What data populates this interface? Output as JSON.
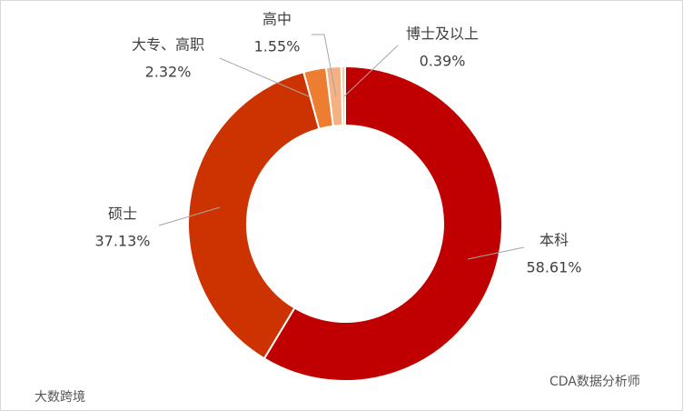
{
  "chart_data": {
    "type": "donut",
    "categories": [
      "本科",
      "硕士",
      "大专、高职",
      "高中",
      "博士及以上"
    ],
    "values": [
      58.61,
      37.13,
      2.32,
      1.55,
      0.39
    ],
    "value_labels": [
      "58.61%",
      "37.13%",
      "2.32%",
      "1.55%",
      "0.39%"
    ],
    "colors": [
      "#C00000",
      "#CC3300",
      "#ED7D31",
      "#F4B183",
      "#F8CBAD"
    ]
  },
  "watermarks": {
    "left": "大数跨境",
    "right": "CDA数据分析师"
  }
}
